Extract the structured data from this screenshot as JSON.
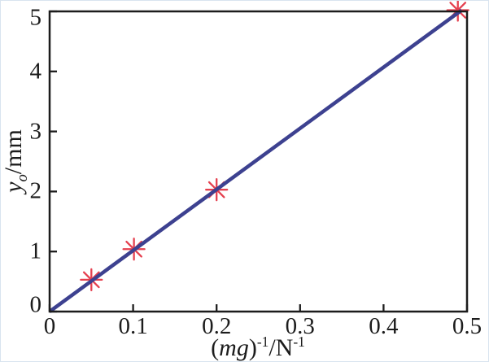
{
  "figure": {
    "background": "#ffffff",
    "border_color": "#d9e4ef"
  },
  "chart_data": {
    "type": "scatter",
    "title": "",
    "xlabel": "(mg)^-1 / N^-1",
    "ylabel": "y_o / mm",
    "xlim": [
      0,
      0.5
    ],
    "ylim": [
      0,
      5
    ],
    "grid": false,
    "legend": null,
    "frame_color": "#1c1c1c",
    "tick_color": "#1c1c1c",
    "xticks": [
      {
        "value": 0,
        "label": "0"
      },
      {
        "value": 0.1,
        "label": "0.1"
      },
      {
        "value": 0.2,
        "label": "0.2"
      },
      {
        "value": 0.3,
        "label": "0.3"
      },
      {
        "value": 0.4,
        "label": "0.4"
      },
      {
        "value": 0.5,
        "label": "0.5"
      }
    ],
    "yticks": [
      {
        "value": 0,
        "label": "0"
      },
      {
        "value": 1,
        "label": "1"
      },
      {
        "value": 2,
        "label": "2"
      },
      {
        "value": 3,
        "label": "3"
      },
      {
        "value": 4,
        "label": "4"
      },
      {
        "value": 5,
        "label": "5"
      }
    ],
    "series": [
      {
        "name": "measured-points",
        "type": "scatter",
        "marker": "asterisk",
        "color": "#e5404f",
        "marker_radius": 13,
        "marker_stroke": 2.3,
        "points": [
          [
            0.05,
            0.53
          ],
          [
            0.101,
            1.04
          ],
          [
            0.2,
            2.03
          ],
          [
            0.489,
            5.02
          ]
        ]
      },
      {
        "name": "linear-fit",
        "type": "line",
        "color": "#3d4190",
        "width": 4.5,
        "points": [
          [
            0,
            0
          ],
          [
            0.4935,
            5.02
          ]
        ]
      }
    ]
  },
  "axis_labels": {
    "y": {
      "variable": "y",
      "subscript": "o",
      "unit": "/mm"
    },
    "x": {
      "open": "(",
      "variable": "mg",
      "close": ")",
      "exponent": "-1",
      "slash": "/",
      "unit": "N",
      "unit_exponent": "-1"
    }
  }
}
